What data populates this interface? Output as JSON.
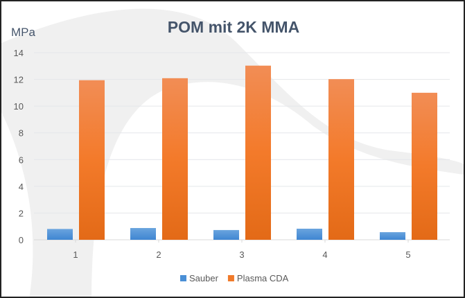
{
  "chart_data": {
    "type": "bar",
    "title": "POM mit 2K MMA",
    "ylabel": "MPa",
    "xlabel": "",
    "ylim": [
      0,
      14
    ],
    "yticks": [
      0,
      2,
      4,
      6,
      8,
      10,
      12,
      14
    ],
    "grid": true,
    "legend_position": "bottom",
    "categories": [
      "1",
      "2",
      "3",
      "4",
      "5"
    ],
    "series": [
      {
        "name": "Sauber",
        "color": "#4a8fd6",
        "values": [
          0.81,
          0.88,
          0.73,
          0.83,
          0.57
        ]
      },
      {
        "name": "Plasma CDA",
        "color": "#f07a2a",
        "values": [
          11.94,
          12.09,
          13.03,
          12.02,
          11.0
        ]
      }
    ]
  }
}
